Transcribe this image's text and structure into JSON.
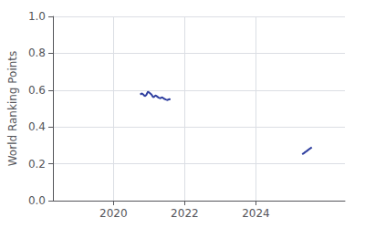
{
  "chart_data": {
    "type": "line",
    "ylabel": "World Ranking Points",
    "color": "#3040a0",
    "xlim": [
      2018.3,
      2026.5
    ],
    "xticks": [
      2020,
      2022,
      2024
    ],
    "ylim": [
      0,
      1
    ],
    "yticks": [
      {
        "value": 0,
        "label": "0.0"
      },
      0.2,
      0.4,
      0.6,
      0.8,
      {
        "value": 1.0,
        "label": "1.0"
      }
    ],
    "grid": true,
    "series": [
      {
        "color": "#3040a0",
        "x": [
          2020.75,
          2020.8,
          2020.85,
          2020.88,
          2020.92,
          2020.97,
          2021.02,
          2021.07,
          2021.1,
          2021.13,
          2021.18,
          2021.22,
          2021.27,
          2021.32,
          2021.37,
          2021.42,
          2021.47,
          2021.52,
          2021.57,
          2021.6
        ],
        "values": [
          0.576,
          0.582,
          0.574,
          0.567,
          0.573,
          0.592,
          0.584,
          0.576,
          0.566,
          0.561,
          0.571,
          0.566,
          0.559,
          0.556,
          0.561,
          0.553,
          0.549,
          0.546,
          0.551,
          0.549
        ]
      },
      {
        "color": "#3040a0",
        "x": [
          2025.3,
          2025.35,
          2025.38,
          2025.42,
          2025.46,
          2025.5,
          2025.53,
          2025.57
        ],
        "values": [
          0.252,
          0.258,
          0.263,
          0.268,
          0.274,
          0.28,
          0.284,
          0.29
        ]
      }
    ]
  }
}
